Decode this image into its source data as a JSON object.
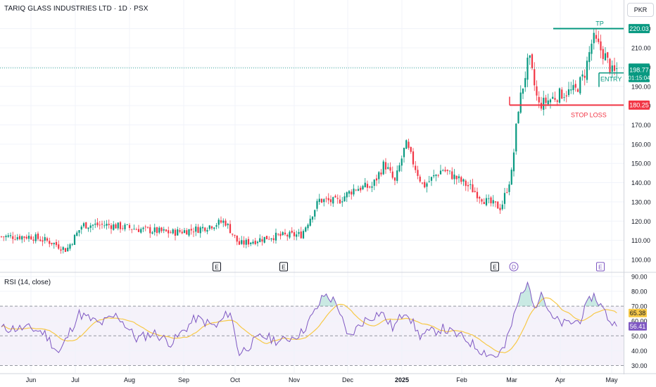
{
  "header": {
    "title": "TARIQ GLASS INDUSTRIES LTD · 1D · PSX",
    "currency_button": "PKR"
  },
  "rsi_panel": {
    "title": "RSI (14, close)",
    "value_label": "56.41",
    "ma_value_label": "65.38"
  },
  "price_tags": [
    {
      "label": "220.03",
      "color": "#089981"
    },
    {
      "label": "199.51",
      "color": "#089981"
    },
    {
      "label": "198.77",
      "color": "#089981"
    },
    {
      "label": "01:15:04",
      "color": "#089981"
    },
    {
      "label": "180.25",
      "color": "#f23645"
    }
  ],
  "annotations": {
    "tp_label": "TP",
    "entry_label": "ENTRY",
    "stop_loss_label": "STOP LOSS"
  },
  "event_markers": [
    "E",
    "E",
    "E",
    "D",
    "E"
  ],
  "colors": {
    "up": "#089981",
    "down": "#f23645",
    "rsi_line": "#7e57c2",
    "rsi_ma": "#f7c948",
    "grid": "#f0f3fa"
  },
  "chart_data": [
    {
      "type": "candlestick",
      "title": "TARIQ GLASS INDUSTRIES LTD · 1D · PSX",
      "y_ticks": [
        100,
        110,
        120,
        130,
        140,
        150,
        160,
        170,
        180,
        190,
        200,
        210,
        220
      ],
      "ylim": [
        95,
        222
      ],
      "x_tick_labels": [
        "Jun",
        "Jul",
        "Aug",
        "Sep",
        "Oct",
        "Nov",
        "Dec",
        "2025",
        "Feb",
        "Mar",
        "Apr",
        "May"
      ],
      "levels": {
        "tp": 220.03,
        "entry": 197,
        "stop_loss": 180.25,
        "last": 198.77,
        "prev_close": 199.51
      },
      "close_anchors": [
        {
          "x": "Jun 1",
          "close": 112
        },
        {
          "x": "Jun 15",
          "close": 109
        },
        {
          "x": "Jun 25",
          "close": 105
        },
        {
          "x": "Jul 5",
          "close": 118
        },
        {
          "x": "Jul 20",
          "close": 118
        },
        {
          "x": "Aug 5",
          "close": 116
        },
        {
          "x": "Aug 25",
          "close": 114
        },
        {
          "x": "Sep 10",
          "close": 116
        },
        {
          "x": "Sep 25",
          "close": 120
        },
        {
          "x": "Oct 3",
          "close": 108
        },
        {
          "x": "Oct 20",
          "close": 112
        },
        {
          "x": "Nov 5",
          "close": 113
        },
        {
          "x": "Nov 15",
          "close": 131
        },
        {
          "x": "Nov 25",
          "close": 130
        },
        {
          "x": "Dec 5",
          "close": 137
        },
        {
          "x": "Dec 15",
          "close": 138
        },
        {
          "x": "Dec 22",
          "close": 150
        },
        {
          "x": "Dec 28",
          "close": 140
        },
        {
          "x": "Jan 3",
          "close": 160
        },
        {
          "x": "Jan 12",
          "close": 138
        },
        {
          "x": "Jan 22",
          "close": 147
        },
        {
          "x": "Feb 5",
          "close": 138
        },
        {
          "x": "Feb 15",
          "close": 130
        },
        {
          "x": "Feb 23",
          "close": 127
        },
        {
          "x": "Mar 1",
          "close": 145
        },
        {
          "x": "Mar 5",
          "close": 178
        },
        {
          "x": "Mar 12",
          "close": 205
        },
        {
          "x": "Mar 18",
          "close": 180
        },
        {
          "x": "Apr 1",
          "close": 186
        },
        {
          "x": "Apr 10",
          "close": 188
        },
        {
          "x": "Apr 15",
          "close": 196
        },
        {
          "x": "Apr 20",
          "close": 215
        },
        {
          "x": "Apr 27",
          "close": 206
        },
        {
          "x": "May 2",
          "close": 196
        },
        {
          "x": "May 4",
          "close": 199
        }
      ]
    },
    {
      "type": "line",
      "title": "RSI (14, close)",
      "y_ticks": [
        30,
        40,
        50,
        60,
        70,
        80,
        90
      ],
      "ylim": [
        27,
        92
      ],
      "bands": [
        30,
        50,
        70
      ],
      "series": [
        {
          "name": "RSI",
          "last": 56.41
        },
        {
          "name": "RSI-based MA",
          "last": 65.38
        }
      ],
      "rsi_anchors": [
        {
          "x": "Jun 1",
          "rsi": 55
        },
        {
          "x": "Jun 10",
          "rsi": 52
        },
        {
          "x": "Jun 20",
          "rsi": 38
        },
        {
          "x": "Jul 3",
          "rsi": 65
        },
        {
          "x": "Jul 15",
          "rsi": 58
        },
        {
          "x": "Jul 25",
          "rsi": 64
        },
        {
          "x": "Aug 5",
          "rsi": 48
        },
        {
          "x": "Aug 15",
          "rsi": 52
        },
        {
          "x": "Aug 25",
          "rsi": 45
        },
        {
          "x": "Sep 8",
          "rsi": 62
        },
        {
          "x": "Sep 20",
          "rsi": 56
        },
        {
          "x": "Sep 28",
          "rsi": 67
        },
        {
          "x": "Oct 3",
          "rsi": 38
        },
        {
          "x": "Oct 15",
          "rsi": 50
        },
        {
          "x": "Oct 25",
          "rsi": 46
        },
        {
          "x": "Nov 5",
          "rsi": 52
        },
        {
          "x": "Nov 12",
          "rsi": 65
        },
        {
          "x": "Nov 18",
          "rsi": 78
        },
        {
          "x": "Nov 25",
          "rsi": 72
        },
        {
          "x": "Dec 1",
          "rsi": 48
        },
        {
          "x": "Dec 10",
          "rsi": 60
        },
        {
          "x": "Dec 20",
          "rsi": 66
        },
        {
          "x": "Dec 27",
          "rsi": 55
        },
        {
          "x": "Jan 3",
          "rsi": 68
        },
        {
          "x": "Jan 10",
          "rsi": 50
        },
        {
          "x": "Jan 22",
          "rsi": 55
        },
        {
          "x": "Feb 3",
          "rsi": 48
        },
        {
          "x": "Feb 12",
          "rsi": 40
        },
        {
          "x": "Feb 20",
          "rsi": 36
        },
        {
          "x": "Feb 25",
          "rsi": 42
        },
        {
          "x": "Mar 3",
          "rsi": 65
        },
        {
          "x": "Mar 8",
          "rsi": 82
        },
        {
          "x": "Mar 12",
          "rsi": 84
        },
        {
          "x": "Mar 16",
          "rsi": 70
        },
        {
          "x": "Mar 20",
          "rsi": 80
        },
        {
          "x": "Mar 26",
          "rsi": 62
        },
        {
          "x": "Apr 3",
          "rsi": 58
        },
        {
          "x": "Apr 12",
          "rsi": 60
        },
        {
          "x": "Apr 20",
          "rsi": 78
        },
        {
          "x": "Apr 25",
          "rsi": 70
        },
        {
          "x": "Apr 30",
          "rsi": 60
        },
        {
          "x": "May 4",
          "rsi": 56.41
        }
      ]
    }
  ]
}
